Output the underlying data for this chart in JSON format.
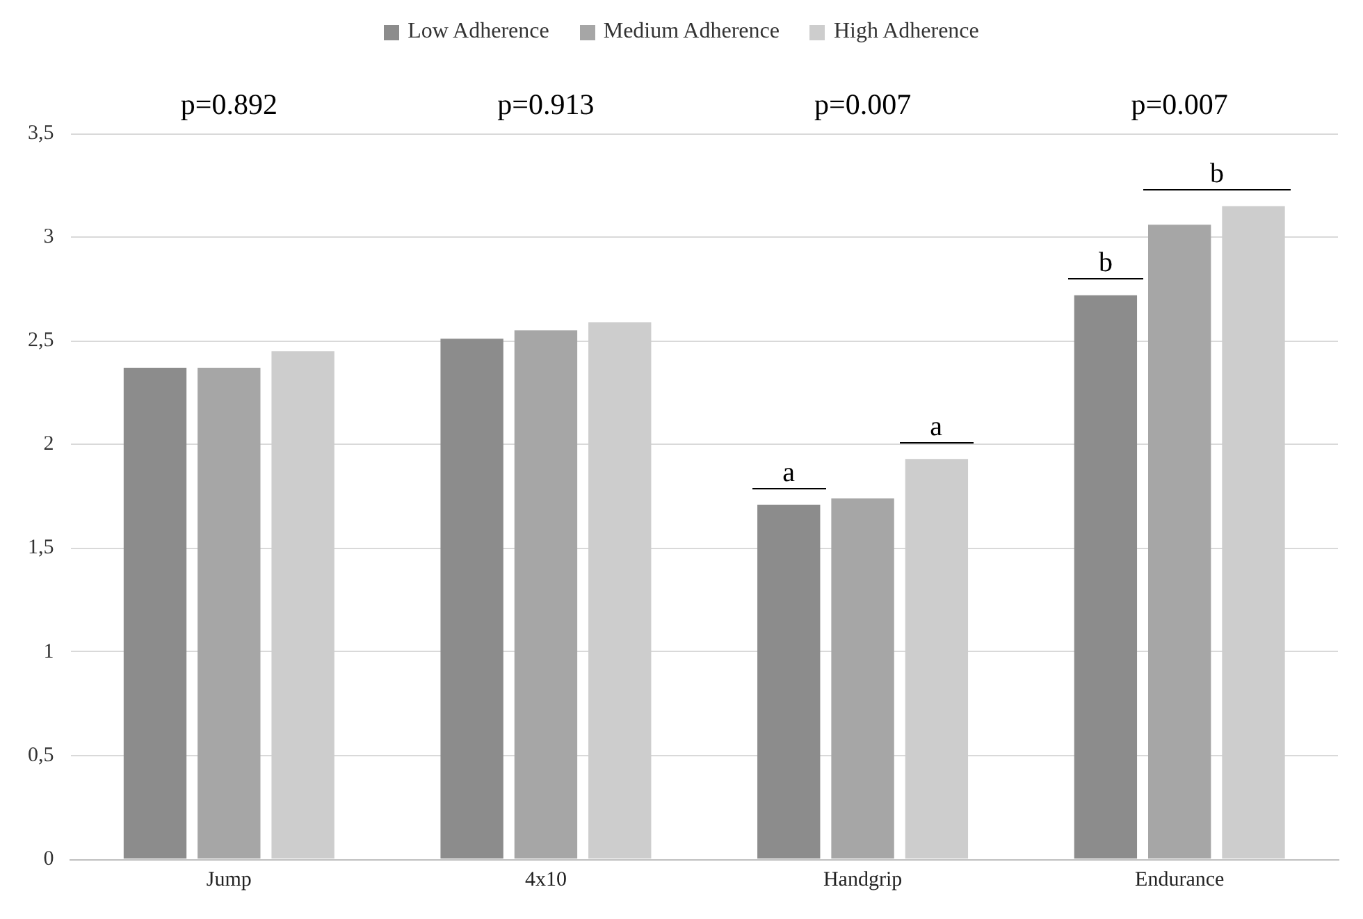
{
  "chart_data": {
    "type": "bar",
    "categories": [
      "Jump",
      "4x10",
      "Handgrip",
      "Endurance"
    ],
    "series": [
      {
        "name": "Low Adherence",
        "color": "#8c8c8c",
        "values": [
          2.37,
          2.51,
          1.71,
          2.72
        ]
      },
      {
        "name": "Medium Adherence",
        "color": "#a6a6a6",
        "values": [
          2.37,
          2.55,
          1.74,
          3.06
        ]
      },
      {
        "name": "High Adherence",
        "color": "#cdcdcd",
        "values": [
          2.45,
          2.59,
          1.93,
          3.15
        ]
      }
    ],
    "ylim": [
      0,
      3.5
    ],
    "yticks": [
      0,
      {
        "value": 0.5,
        "label": "0,5"
      },
      1,
      {
        "value": 1.5,
        "label": "1,5"
      },
      2,
      {
        "value": 2.5,
        "label": "2,5"
      },
      3,
      {
        "value": 3.5,
        "label": "3,5"
      }
    ],
    "grid": "y",
    "legend": "top",
    "annotations": [
      "p=0.892",
      "p=0.913",
      "p=0.007",
      "p=0.007",
      "a",
      "a",
      "b",
      "b"
    ]
  }
}
